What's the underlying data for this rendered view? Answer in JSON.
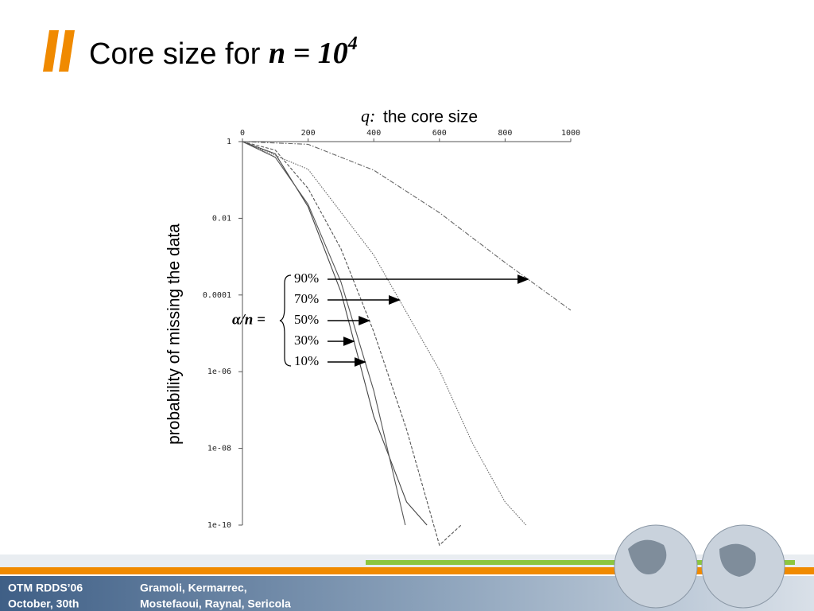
{
  "chart_data": {
    "type": "line",
    "title": {
      "text": "Core size for",
      "math": "n = 10",
      "exp": "4"
    },
    "xlabel_symbol": "q:",
    "xlabel": "the core size",
    "ylabel": "probability of missing the data",
    "legend_prefix": "α/n =",
    "log_y": true,
    "xlim": [
      0,
      1000
    ],
    "xticks": [
      0,
      200,
      400,
      600,
      800,
      1000
    ],
    "ylim": [
      1e-10,
      1
    ],
    "yticks": [
      1,
      0.01,
      0.0001,
      {
        "value": 1e-06,
        "label": "1e-06"
      },
      {
        "value": 1e-08,
        "label": "1e-08"
      },
      1e-10
    ],
    "series": [
      {
        "name": "90%",
        "color": "#666666",
        "dash": "dashdot",
        "x": [
          0,
          200,
          400,
          600,
          800,
          1000
        ],
        "values": [
          1,
          0.85,
          0.18,
          0.014,
          0.0007,
          4e-05
        ]
      },
      {
        "name": "70%",
        "color": "#666666",
        "dash": "dotted",
        "x": [
          0,
          200,
          400,
          600,
          700,
          800,
          864
        ],
        "values": [
          1,
          0.19,
          0.0011,
          1.1e-06,
          1.4e-08,
          4e-10,
          1e-10
        ]
      },
      {
        "name": "50%",
        "color": "#555555",
        "dash": "dashed",
        "x": [
          0,
          100,
          200,
          300,
          400,
          500,
          600,
          666
        ],
        "values": [
          1,
          0.6,
          0.06,
          0.0016,
          1.1e-05,
          3.1e-08,
          3e-11,
          1e-10
        ]
      },
      {
        "name": "30%",
        "color": "#444444",
        "dash": "solid",
        "x": [
          0,
          100,
          200,
          300,
          400,
          500,
          562
        ],
        "values": [
          1,
          0.48,
          0.02,
          0.00012,
          6.8e-08,
          4e-10,
          1e-10
        ]
      },
      {
        "name": "10%",
        "color": "#555555",
        "dash": "solid",
        "x": [
          0,
          100,
          200,
          300,
          400,
          496
        ],
        "values": [
          1,
          0.39,
          0.023,
          0.00022,
          3.2e-07,
          1e-10
        ]
      }
    ]
  },
  "footer": {
    "left": [
      "OTM RDDS’06",
      "October, 30th"
    ],
    "right": [
      "Gramoli, Kermarrec,",
      "Mostefaoui, Raynal, Sericola"
    ]
  }
}
